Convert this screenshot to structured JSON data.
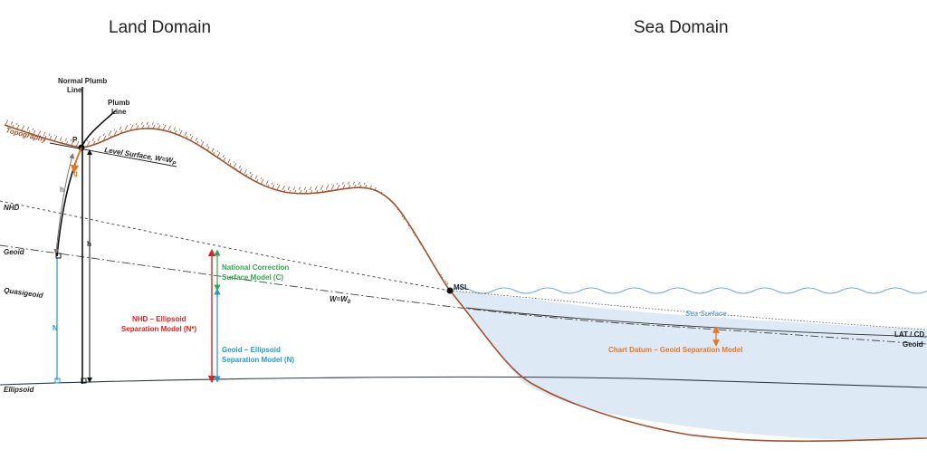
{
  "headers": {
    "land": "Land Domain",
    "sea": "Sea Domain"
  },
  "labels": {
    "normal_plumb_1": "Normal Plumb",
    "normal_plumb_2": "Line",
    "plumb_1": "Plumb",
    "plumb_2": "Line",
    "point_p": "P",
    "topography": "Topography",
    "level_surface": "Level Surface, W=W",
    "level_surface_sub": "P",
    "nhd": "NHD",
    "geoid": "Geoid",
    "quasigeoid": "Quasigeoid",
    "ellipsoid": "Ellipsoid",
    "w0": "W=W",
    "w0_sub": "0",
    "msl": "MSL",
    "h_left": "h",
    "h_right": "h",
    "g": "g",
    "n": "N",
    "ncsm_1": "National Correction",
    "ncsm_2": "Surface Model (C)",
    "nhd_ell_1": "NHD – Ellipsoid",
    "nhd_ell_2": "Separation Model (N*)",
    "geoid_ell_1": "Geoid – Ellipsoid",
    "geoid_ell_2": "Separation Model (N)",
    "sea_surface": "Sea Surface",
    "lat_cd": "LAT / CD",
    "geoid_sea": "Geoid",
    "chart_datum": "Chart Datum – Geoid Separation Model"
  },
  "colors": {
    "topography": "#a0522d",
    "sea_fill": "#dde9f4",
    "sea_line": "#6fa8d6",
    "red": "#e02020",
    "green": "#2ea84a",
    "blue": "#1f9ad6",
    "orange": "#e87722"
  }
}
